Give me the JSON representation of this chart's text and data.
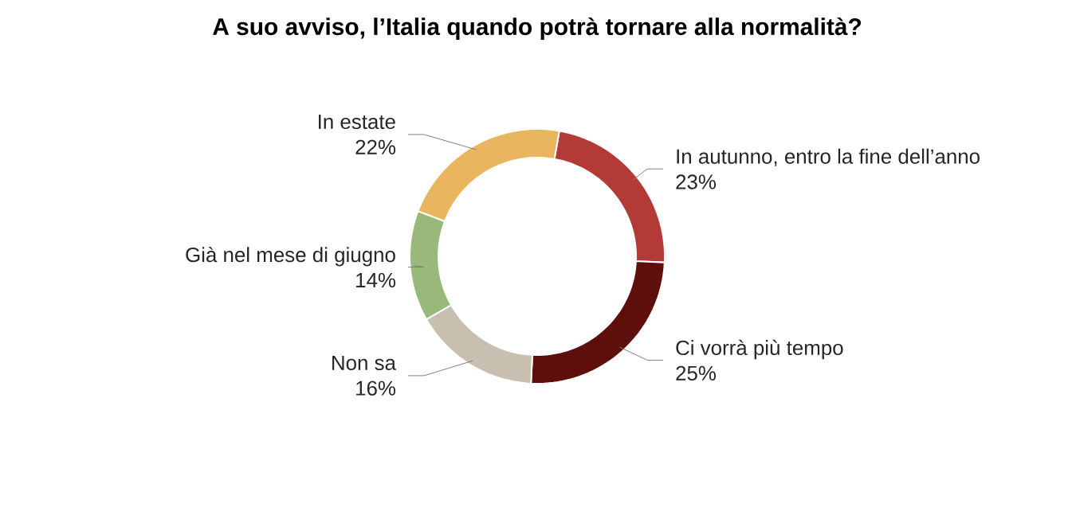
{
  "chart_data": {
    "type": "donut",
    "title": "A suo avviso, l’Italia quando potrà tornare alla normalità?",
    "categories": [
      "In autunno, entro la fine dell’anno",
      "Ci vorrà più tempo",
      "Non sa",
      "Già nel mese di giugno",
      "In estate"
    ],
    "values": [
      23,
      25,
      16,
      14,
      22
    ],
    "colors": [
      "#b33a36",
      "#5e0e0b",
      "#c8bfb1",
      "#98b97a",
      "#e9b55e"
    ],
    "value_labels": [
      "23%",
      "25%",
      "16%",
      "14%",
      "22%"
    ]
  }
}
